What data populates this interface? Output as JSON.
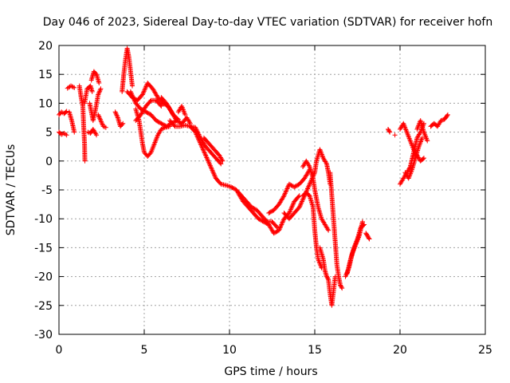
{
  "chart_data": {
    "type": "scatter",
    "title": "Day 046 of 2023, Sidereal Day-to-day VTEC variation (SDTVAR) for receiver hofn",
    "xlabel": "GPS time / hours",
    "ylabel": "SDTVAR / TECUs",
    "xlim": [
      0,
      25
    ],
    "ylim": [
      -30,
      20
    ],
    "xticks": [
      0,
      5,
      10,
      15,
      20,
      25
    ],
    "yticks": [
      -30,
      -25,
      -20,
      -15,
      -10,
      -5,
      0,
      5,
      10,
      15,
      20
    ],
    "xtick_labels": [
      "0",
      "5",
      "10",
      "15",
      "20",
      "25"
    ],
    "ytick_labels": [
      "-30",
      "-25",
      "-20",
      "-15",
      "-10",
      "-5",
      "0",
      "5",
      "10",
      "15",
      "20"
    ],
    "grid": true,
    "marker": "+",
    "series_color": "#ff0000",
    "segments": [
      [
        [
          0.0,
          8
        ],
        [
          0.15,
          8.5
        ],
        [
          0.3,
          8.2
        ],
        [
          0.45,
          8.6
        ]
      ],
      [
        [
          0.0,
          5
        ],
        [
          0.15,
          4.6
        ],
        [
          0.3,
          4.8
        ],
        [
          0.45,
          4.5
        ]
      ],
      [
        [
          0.5,
          12.6
        ],
        [
          0.7,
          13
        ],
        [
          0.9,
          12.7
        ]
      ],
      [
        [
          0.6,
          8.5
        ],
        [
          0.75,
          7
        ],
        [
          0.9,
          5
        ]
      ],
      [
        [
          1.2,
          13
        ],
        [
          1.3,
          11
        ],
        [
          1.4,
          9.5
        ],
        [
          1.45,
          6
        ],
        [
          1.5,
          3
        ],
        [
          1.52,
          0
        ]
      ],
      [
        [
          1.5,
          10
        ],
        [
          1.65,
          12.5
        ],
        [
          1.85,
          13
        ],
        [
          1.95,
          12
        ]
      ],
      [
        [
          1.7,
          5
        ],
        [
          1.85,
          4.8
        ],
        [
          2.0,
          5.5
        ],
        [
          2.2,
          4.5
        ]
      ],
      [
        [
          1.8,
          10
        ],
        [
          1.9,
          8.5
        ],
        [
          2.0,
          7
        ],
        [
          2.15,
          9
        ],
        [
          2.3,
          11.5
        ],
        [
          2.45,
          12.5
        ]
      ],
      [
        [
          1.9,
          14
        ],
        [
          2.05,
          15.5
        ],
        [
          2.2,
          15
        ],
        [
          2.35,
          13.5
        ]
      ],
      [
        [
          2.3,
          8
        ],
        [
          2.45,
          7
        ],
        [
          2.6,
          6
        ],
        [
          2.75,
          5.8
        ]
      ],
      [
        [
          3.3,
          8.5
        ],
        [
          3.45,
          7.5
        ],
        [
          3.6,
          6
        ],
        [
          3.75,
          6.5
        ]
      ],
      [
        [
          3.7,
          12
        ],
        [
          3.8,
          15
        ],
        [
          3.9,
          17.5
        ],
        [
          4.0,
          19.5
        ],
        [
          4.1,
          18
        ],
        [
          4.2,
          15.5
        ],
        [
          4.3,
          13
        ]
      ],
      [
        [
          4.0,
          12
        ],
        [
          4.3,
          11
        ],
        [
          4.6,
          10.5
        ],
        [
          4.9,
          11.5
        ],
        [
          5.2,
          13.5
        ],
        [
          5.5,
          12.5
        ],
        [
          5.8,
          11
        ],
        [
          6.1,
          10
        ],
        [
          6.4,
          9.5
        ],
        [
          6.7,
          8
        ],
        [
          7.0,
          7.2
        ]
      ],
      [
        [
          4.2,
          12
        ],
        [
          4.5,
          10
        ],
        [
          4.8,
          9
        ],
        [
          5.1,
          8.5
        ],
        [
          5.4,
          8
        ],
        [
          5.7,
          7
        ],
        [
          6.0,
          6.5
        ],
        [
          6.3,
          6
        ],
        [
          6.6,
          6.5
        ],
        [
          6.9,
          7
        ]
      ],
      [
        [
          4.5,
          9
        ],
        [
          4.7,
          7
        ],
        [
          4.8,
          5
        ],
        [
          4.9,
          3
        ],
        [
          5.0,
          1.5
        ],
        [
          5.2,
          0.8
        ],
        [
          5.4,
          1.5
        ],
        [
          5.6,
          3
        ],
        [
          5.8,
          4.5
        ],
        [
          6.0,
          5.5
        ],
        [
          6.2,
          5.8
        ],
        [
          6.5,
          6
        ]
      ],
      [
        [
          4.5,
          7
        ],
        [
          4.8,
          8
        ],
        [
          5.1,
          9.5
        ],
        [
          5.4,
          10.5
        ],
        [
          5.7,
          10.5
        ],
        [
          6.0,
          9.5
        ]
      ],
      [
        [
          6.0,
          11
        ],
        [
          6.3,
          10
        ],
        [
          6.6,
          8.5
        ],
        [
          6.9,
          7
        ],
        [
          7.2,
          6.5
        ],
        [
          7.5,
          7.5
        ],
        [
          7.7,
          6.5
        ]
      ],
      [
        [
          6.5,
          7
        ],
        [
          6.8,
          6
        ],
        [
          7.1,
          6
        ],
        [
          7.4,
          6.2
        ],
        [
          7.7,
          6
        ],
        [
          8.0,
          5.8
        ],
        [
          8.3,
          4
        ],
        [
          8.6,
          2.5
        ],
        [
          8.9,
          1.5
        ],
        [
          9.2,
          0.5
        ],
        [
          9.5,
          -0.5
        ]
      ],
      [
        [
          7.0,
          8.5
        ],
        [
          7.2,
          9.5
        ],
        [
          7.4,
          8
        ]
      ],
      [
        [
          7.7,
          6
        ],
        [
          8.0,
          5
        ],
        [
          8.3,
          3
        ],
        [
          8.6,
          1
        ],
        [
          8.9,
          -1
        ],
        [
          9.2,
          -3
        ],
        [
          9.5,
          -4
        ],
        [
          9.8,
          -4.2
        ],
        [
          10.1,
          -4.5
        ],
        [
          10.4,
          -5
        ],
        [
          10.7,
          -6
        ],
        [
          11.0,
          -7
        ],
        [
          11.3,
          -8
        ],
        [
          11.6,
          -8.5
        ],
        [
          11.9,
          -9.5
        ],
        [
          12.2,
          -10.5
        ],
        [
          12.5,
          -10.5
        ],
        [
          12.8,
          -11.5
        ]
      ],
      [
        [
          8.5,
          4
        ],
        [
          8.8,
          3
        ],
        [
          9.1,
          2
        ],
        [
          9.4,
          1
        ],
        [
          9.6,
          0
        ]
      ],
      [
        [
          10.5,
          -5.5
        ],
        [
          10.8,
          -7
        ],
        [
          11.1,
          -8
        ],
        [
          11.4,
          -9
        ],
        [
          11.7,
          -10
        ],
        [
          12.0,
          -10.5
        ],
        [
          12.3,
          -11
        ],
        [
          12.6,
          -12.5
        ],
        [
          12.9,
          -12
        ],
        [
          13.2,
          -10
        ],
        [
          13.5,
          -9
        ],
        [
          13.8,
          -7
        ],
        [
          14.1,
          -6
        ]
      ],
      [
        [
          12.3,
          -9
        ],
        [
          12.6,
          -8.5
        ],
        [
          12.9,
          -7.5
        ],
        [
          13.2,
          -6
        ],
        [
          13.5,
          -4
        ],
        [
          13.8,
          -4.5
        ],
        [
          14.1,
          -4
        ],
        [
          14.4,
          -3
        ],
        [
          14.7,
          -1.5
        ]
      ],
      [
        [
          13.2,
          -9
        ],
        [
          13.5,
          -10
        ],
        [
          13.8,
          -9
        ],
        [
          14.1,
          -8
        ],
        [
          14.4,
          -6
        ],
        [
          14.7,
          -4
        ],
        [
          15.0,
          -2
        ],
        [
          15.1,
          0
        ],
        [
          15.3,
          2
        ],
        [
          15.5,
          0.5
        ],
        [
          15.7,
          -0.5
        ],
        [
          15.8,
          -2
        ],
        [
          15.9,
          -4
        ]
      ],
      [
        [
          14.3,
          -1
        ],
        [
          14.5,
          0
        ],
        [
          14.7,
          -1
        ],
        [
          14.9,
          -3
        ],
        [
          15.0,
          -5
        ],
        [
          15.2,
          -8
        ],
        [
          15.4,
          -10
        ],
        [
          15.6,
          -11
        ],
        [
          15.8,
          -12
        ]
      ],
      [
        [
          14.3,
          -6
        ],
        [
          14.5,
          -5.5
        ],
        [
          14.7,
          -6
        ],
        [
          14.9,
          -8
        ],
        [
          15.0,
          -12
        ],
        [
          15.1,
          -15
        ],
        [
          15.2,
          -17
        ],
        [
          15.4,
          -18.5
        ]
      ],
      [
        [
          15.3,
          -15
        ],
        [
          15.5,
          -17
        ],
        [
          15.6,
          -19
        ],
        [
          15.7,
          -20
        ],
        [
          15.8,
          -20.5
        ],
        [
          15.9,
          -23
        ],
        [
          16.0,
          -25
        ],
        [
          16.1,
          -22.5
        ],
        [
          16.2,
          -20
        ]
      ],
      [
        [
          15.9,
          -2
        ],
        [
          16.0,
          -6
        ],
        [
          16.1,
          -10
        ],
        [
          16.2,
          -14
        ],
        [
          16.3,
          -18
        ],
        [
          16.4,
          -20
        ],
        [
          16.5,
          -21.5
        ],
        [
          16.6,
          -22
        ]
      ],
      [
        [
          16.8,
          -20
        ],
        [
          17.0,
          -18.5
        ],
        [
          17.2,
          -16
        ],
        [
          17.4,
          -14.5
        ],
        [
          17.6,
          -13
        ],
        [
          17.8,
          -10.5
        ]
      ],
      [
        [
          16.9,
          -19.5
        ],
        [
          17.1,
          -17
        ],
        [
          17.3,
          -15
        ],
        [
          17.5,
          -13.5
        ],
        [
          17.7,
          -11.5
        ],
        [
          17.9,
          -11
        ]
      ],
      [
        [
          18.0,
          -12.5
        ],
        [
          18.1,
          -13
        ],
        [
          18.2,
          -13.5
        ]
      ],
      [
        [
          19.3,
          5.5
        ],
        [
          19.4,
          5
        ]
      ],
      [
        [
          19.7,
          4.5
        ]
      ],
      [
        [
          20.0,
          -4
        ],
        [
          20.2,
          -3
        ],
        [
          20.4,
          -2
        ],
        [
          20.6,
          -1
        ],
        [
          20.8,
          1.5
        ],
        [
          21.0,
          4
        ],
        [
          21.2,
          5
        ],
        [
          21.4,
          6.5
        ]
      ],
      [
        [
          20.0,
          5.5
        ],
        [
          20.2,
          6.5
        ],
        [
          20.4,
          5
        ],
        [
          20.6,
          3.5
        ],
        [
          20.8,
          2
        ],
        [
          21.0,
          1
        ],
        [
          21.2,
          0
        ],
        [
          21.4,
          0.5
        ]
      ],
      [
        [
          20.3,
          -2
        ],
        [
          20.5,
          -3
        ],
        [
          20.7,
          -1.5
        ],
        [
          20.9,
          0.5
        ],
        [
          21.1,
          2.5
        ],
        [
          21.3,
          4
        ]
      ],
      [
        [
          21.0,
          5.5
        ],
        [
          21.2,
          7
        ],
        [
          21.4,
          5
        ],
        [
          21.6,
          3.5
        ]
      ],
      [
        [
          21.8,
          6
        ],
        [
          22.0,
          6.5
        ],
        [
          22.2,
          6
        ],
        [
          22.4,
          7
        ],
        [
          22.6,
          7.2
        ],
        [
          22.8,
          8
        ]
      ]
    ]
  }
}
